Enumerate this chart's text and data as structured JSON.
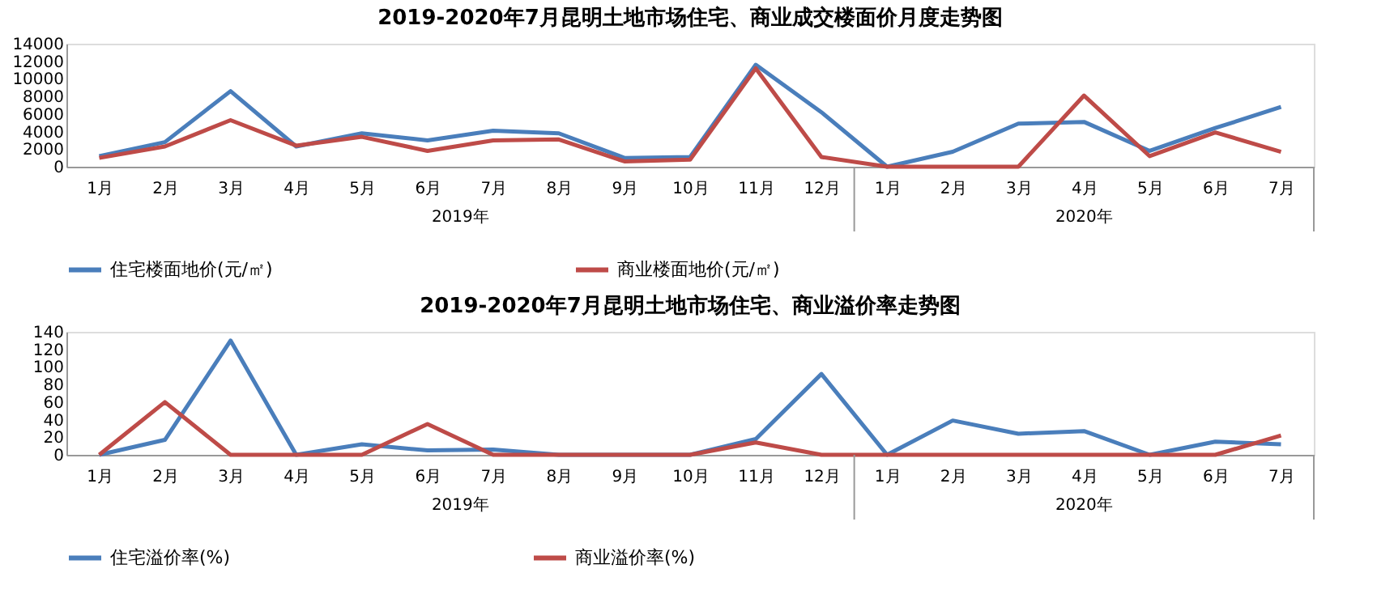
{
  "chart_data": [
    {
      "type": "line",
      "title": "2019-2020年7月昆明土地市场住宅、商业成交楼面价月度走势图",
      "categories": [
        "1月",
        "2月",
        "3月",
        "4月",
        "5月",
        "6月",
        "7月",
        "8月",
        "9月",
        "10月",
        "11月",
        "12月",
        "1月",
        "2月",
        "3月",
        "4月",
        "5月",
        "6月",
        "7月"
      ],
      "series": [
        {
          "name": "住宅楼面地价(元/㎡)",
          "color": "#4a7ebb",
          "values": [
            1200,
            2800,
            8600,
            2300,
            3800,
            3000,
            4100,
            3800,
            1000,
            1100,
            11600,
            6200,
            0,
            1700,
            4900,
            5100,
            1800,
            4400,
            6800
          ]
        },
        {
          "name": "商业楼面地价(元/㎡)",
          "color": "#be4b48",
          "values": [
            1000,
            2300,
            5300,
            2400,
            3400,
            1800,
            3000,
            3100,
            600,
            800,
            11200,
            1100,
            0,
            0,
            0,
            8100,
            1200,
            3900,
            1700
          ]
        }
      ],
      "ylim": [
        0,
        14000
      ],
      "yticks": [
        0,
        2000,
        4000,
        6000,
        8000,
        10000,
        12000,
        14000
      ],
      "legend": "bottom",
      "annotations": [
        "2019年",
        "2020年"
      ]
    },
    {
      "type": "line",
      "title": "2019-2020年7月昆明土地市场住宅、商业溢价率走势图",
      "categories": [
        "1月",
        "2月",
        "3月",
        "4月",
        "5月",
        "6月",
        "7月",
        "8月",
        "9月",
        "10月",
        "11月",
        "12月",
        "1月",
        "2月",
        "3月",
        "4月",
        "5月",
        "6月",
        "7月"
      ],
      "series": [
        {
          "name": "住宅溢价率(%)",
          "color": "#4a7ebb",
          "values": [
            0,
            17,
            130,
            0,
            12,
            5,
            6,
            0,
            0,
            0,
            18,
            92,
            0,
            39,
            24,
            27,
            0,
            15,
            12
          ]
        },
        {
          "name": "商业溢价率(%)",
          "color": "#be4b48",
          "values": [
            0,
            60,
            0,
            0,
            0,
            35,
            0,
            0,
            0,
            0,
            14,
            0,
            0,
            0,
            0,
            0,
            0,
            0,
            22
          ]
        }
      ],
      "ylim": [
        0,
        140
      ],
      "yticks": [
        0,
        20,
        40,
        60,
        80,
        100,
        120,
        140
      ],
      "legend": "bottom",
      "annotations": [
        "2019年",
        "2020年"
      ]
    }
  ]
}
